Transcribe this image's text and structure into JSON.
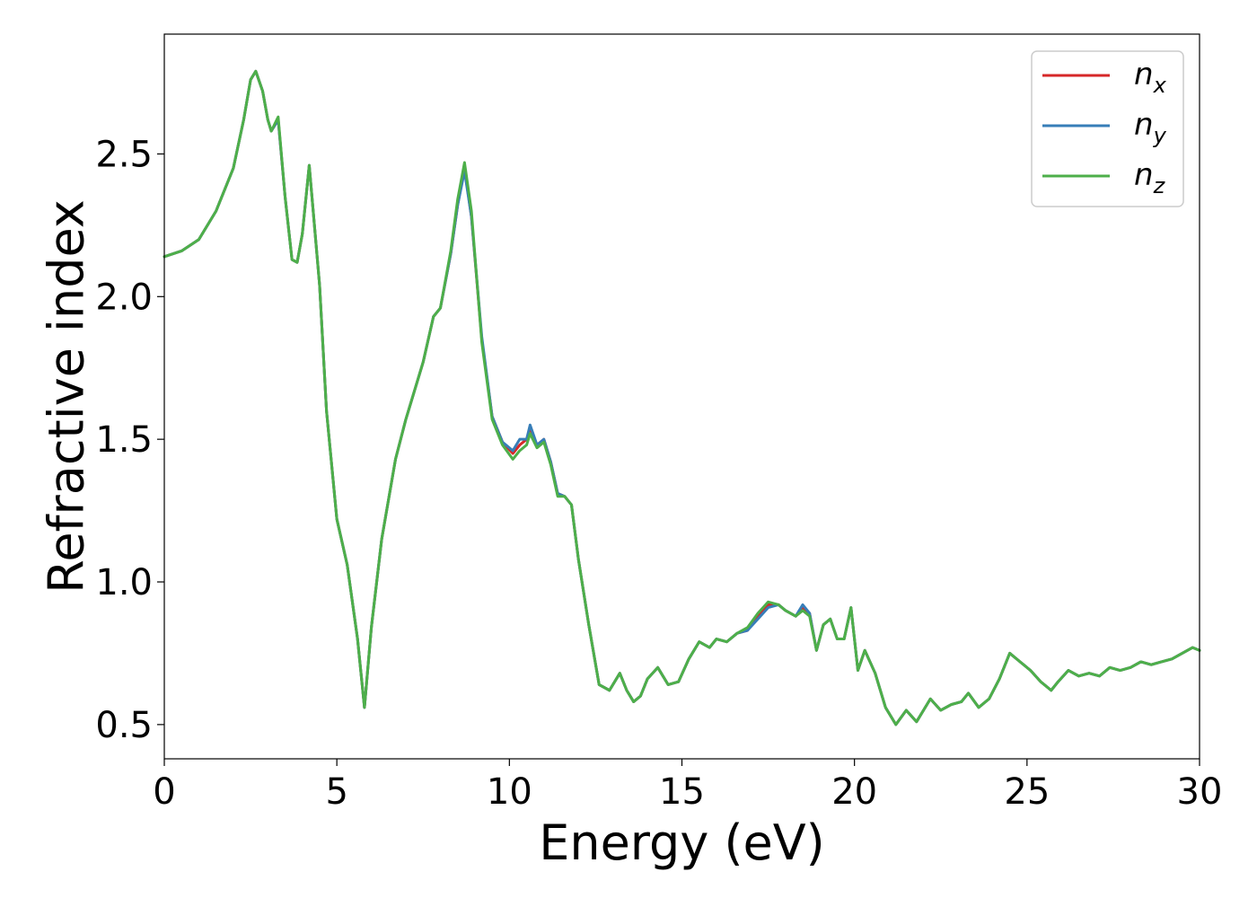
{
  "chart_data": {
    "type": "line",
    "title": "",
    "xlabel": "Energy (eV)",
    "ylabel": "Refractive index",
    "xlim": [
      0,
      30
    ],
    "ylim": [
      0.38,
      2.92
    ],
    "xticks": [
      0,
      5,
      10,
      15,
      20,
      25,
      30
    ],
    "xtick_labels": [
      "0",
      "5",
      "10",
      "15",
      "20",
      "25",
      "30"
    ],
    "yticks": [
      0.5,
      1.0,
      1.5,
      2.0,
      2.5
    ],
    "ytick_labels": [
      "0.5",
      "1.0",
      "1.5",
      "2.0",
      "2.5"
    ],
    "grid": false,
    "legend_position": "top-right",
    "series": [
      {
        "name": "n",
        "subscript": "x",
        "color": "#d62728",
        "x": [
          0,
          0.5,
          1.0,
          1.5,
          2.0,
          2.3,
          2.5,
          2.65,
          2.85,
          3.0,
          3.1,
          3.3,
          3.5,
          3.7,
          3.85,
          4.0,
          4.2,
          4.35,
          4.5,
          4.7,
          5.0,
          5.3,
          5.6,
          5.8,
          6.0,
          6.3,
          6.7,
          7.0,
          7.5,
          7.8,
          8.0,
          8.3,
          8.5,
          8.7,
          8.9,
          9.2,
          9.5,
          9.8,
          10.1,
          10.3,
          10.5,
          10.6,
          10.8,
          11.0,
          11.2,
          11.4,
          11.6,
          11.8,
          12.0,
          12.3,
          12.6,
          12.9,
          13.2,
          13.4,
          13.6,
          13.8,
          14.0,
          14.3,
          14.6,
          14.9,
          15.2,
          15.5,
          15.8,
          16.0,
          16.3,
          16.6,
          16.9,
          17.2,
          17.5,
          17.8,
          18.0,
          18.3,
          18.5,
          18.7,
          18.9,
          19.1,
          19.3,
          19.5,
          19.7,
          19.9,
          20.1,
          20.3,
          20.6,
          20.9,
          21.2,
          21.5,
          21.8,
          22.0,
          22.2,
          22.5,
          22.8,
          23.1,
          23.3,
          23.6,
          23.9,
          24.2,
          24.5,
          24.8,
          25.1,
          25.4,
          25.7,
          25.9,
          26.2,
          26.5,
          26.8,
          27.1,
          27.4,
          27.7,
          28.0,
          28.3,
          28.6,
          28.9,
          29.2,
          29.5,
          29.8,
          30.0
        ],
        "y": [
          2.14,
          2.16,
          2.2,
          2.3,
          2.45,
          2.62,
          2.76,
          2.79,
          2.72,
          2.62,
          2.58,
          2.62,
          2.35,
          2.13,
          2.12,
          2.22,
          2.46,
          2.25,
          2.04,
          1.6,
          1.22,
          1.06,
          0.8,
          0.56,
          0.84,
          1.15,
          1.43,
          1.57,
          1.77,
          1.93,
          1.96,
          2.15,
          2.32,
          2.45,
          2.28,
          1.85,
          1.58,
          1.49,
          1.45,
          1.48,
          1.5,
          1.54,
          1.48,
          1.5,
          1.42,
          1.31,
          1.3,
          1.27,
          1.08,
          0.85,
          0.64,
          0.62,
          0.68,
          0.62,
          0.58,
          0.6,
          0.66,
          0.7,
          0.64,
          0.65,
          0.73,
          0.79,
          0.77,
          0.8,
          0.79,
          0.82,
          0.83,
          0.88,
          0.92,
          0.92,
          0.9,
          0.88,
          0.91,
          0.89,
          0.76,
          0.85,
          0.87,
          0.8,
          0.8,
          0.91,
          0.69,
          0.76,
          0.68,
          0.56,
          0.5,
          0.55,
          0.51,
          0.55,
          0.59,
          0.55,
          0.57,
          0.58,
          0.61,
          0.56,
          0.59,
          0.66,
          0.75,
          0.72,
          0.69,
          0.65,
          0.62,
          0.65,
          0.69,
          0.67,
          0.68,
          0.67,
          0.7,
          0.69,
          0.7,
          0.72,
          0.71,
          0.72,
          0.73,
          0.75,
          0.77,
          0.76
        ]
      },
      {
        "name": "n",
        "subscript": "y",
        "color": "#377eb8",
        "x": [
          0,
          0.5,
          1.0,
          1.5,
          2.0,
          2.3,
          2.5,
          2.65,
          2.85,
          3.0,
          3.1,
          3.3,
          3.5,
          3.7,
          3.85,
          4.0,
          4.2,
          4.35,
          4.5,
          4.7,
          5.0,
          5.3,
          5.6,
          5.8,
          6.0,
          6.3,
          6.7,
          7.0,
          7.5,
          7.8,
          8.0,
          8.3,
          8.5,
          8.7,
          8.9,
          9.2,
          9.5,
          9.8,
          10.1,
          10.3,
          10.5,
          10.6,
          10.8,
          11.0,
          11.2,
          11.4,
          11.6,
          11.8,
          12.0,
          12.3,
          12.6,
          12.9,
          13.2,
          13.4,
          13.6,
          13.8,
          14.0,
          14.3,
          14.6,
          14.9,
          15.2,
          15.5,
          15.8,
          16.0,
          16.3,
          16.6,
          16.9,
          17.2,
          17.5,
          17.8,
          18.0,
          18.3,
          18.5,
          18.7,
          18.9,
          19.1,
          19.3,
          19.5,
          19.7,
          19.9,
          20.1,
          20.3,
          20.6,
          20.9,
          21.2,
          21.5,
          21.8,
          22.0,
          22.2,
          22.5,
          22.8,
          23.1,
          23.3,
          23.6,
          23.9,
          24.2,
          24.5,
          24.8,
          25.1,
          25.4,
          25.7,
          25.9,
          26.2,
          26.5,
          26.8,
          27.1,
          27.4,
          27.7,
          28.0,
          28.3,
          28.6,
          28.9,
          29.2,
          29.5,
          29.8,
          30.0
        ],
        "y": [
          2.14,
          2.16,
          2.2,
          2.3,
          2.45,
          2.62,
          2.76,
          2.79,
          2.72,
          2.62,
          2.58,
          2.62,
          2.35,
          2.13,
          2.12,
          2.22,
          2.46,
          2.25,
          2.04,
          1.6,
          1.22,
          1.06,
          0.8,
          0.56,
          0.84,
          1.15,
          1.43,
          1.57,
          1.77,
          1.93,
          1.96,
          2.15,
          2.32,
          2.44,
          2.28,
          1.86,
          1.58,
          1.49,
          1.46,
          1.5,
          1.5,
          1.55,
          1.48,
          1.5,
          1.42,
          1.31,
          1.3,
          1.27,
          1.08,
          0.85,
          0.64,
          0.62,
          0.68,
          0.62,
          0.58,
          0.6,
          0.66,
          0.7,
          0.64,
          0.65,
          0.73,
          0.79,
          0.77,
          0.8,
          0.79,
          0.82,
          0.83,
          0.87,
          0.91,
          0.92,
          0.9,
          0.88,
          0.92,
          0.89,
          0.76,
          0.85,
          0.87,
          0.8,
          0.8,
          0.91,
          0.69,
          0.76,
          0.68,
          0.56,
          0.5,
          0.55,
          0.51,
          0.55,
          0.59,
          0.55,
          0.57,
          0.58,
          0.61,
          0.56,
          0.59,
          0.66,
          0.75,
          0.72,
          0.69,
          0.65,
          0.62,
          0.65,
          0.69,
          0.67,
          0.68,
          0.67,
          0.7,
          0.69,
          0.7,
          0.72,
          0.71,
          0.72,
          0.73,
          0.75,
          0.77,
          0.76
        ]
      },
      {
        "name": "n",
        "subscript": "z",
        "color": "#4daf4a",
        "x": [
          0,
          0.5,
          1.0,
          1.5,
          2.0,
          2.3,
          2.5,
          2.65,
          2.85,
          3.0,
          3.1,
          3.3,
          3.5,
          3.7,
          3.85,
          4.0,
          4.2,
          4.35,
          4.5,
          4.7,
          5.0,
          5.3,
          5.6,
          5.8,
          6.0,
          6.3,
          6.7,
          7.0,
          7.5,
          7.8,
          8.0,
          8.3,
          8.5,
          8.7,
          8.9,
          9.2,
          9.5,
          9.8,
          10.1,
          10.3,
          10.5,
          10.6,
          10.8,
          11.0,
          11.2,
          11.4,
          11.6,
          11.8,
          12.0,
          12.3,
          12.6,
          12.9,
          13.2,
          13.4,
          13.6,
          13.8,
          14.0,
          14.3,
          14.6,
          14.9,
          15.2,
          15.5,
          15.8,
          16.0,
          16.3,
          16.6,
          16.9,
          17.2,
          17.5,
          17.8,
          18.0,
          18.3,
          18.5,
          18.7,
          18.9,
          19.1,
          19.3,
          19.5,
          19.7,
          19.9,
          20.1,
          20.3,
          20.6,
          20.9,
          21.2,
          21.5,
          21.8,
          22.0,
          22.2,
          22.5,
          22.8,
          23.1,
          23.3,
          23.6,
          23.9,
          24.2,
          24.5,
          24.8,
          25.1,
          25.4,
          25.7,
          25.9,
          26.2,
          26.5,
          26.8,
          27.1,
          27.4,
          27.7,
          28.0,
          28.3,
          28.6,
          28.9,
          29.2,
          29.5,
          29.8,
          30.0
        ],
        "y": [
          2.14,
          2.16,
          2.2,
          2.3,
          2.45,
          2.62,
          2.76,
          2.79,
          2.72,
          2.62,
          2.58,
          2.63,
          2.35,
          2.13,
          2.12,
          2.22,
          2.46,
          2.25,
          2.04,
          1.6,
          1.22,
          1.06,
          0.8,
          0.56,
          0.84,
          1.15,
          1.43,
          1.57,
          1.77,
          1.93,
          1.96,
          2.16,
          2.34,
          2.47,
          2.3,
          1.84,
          1.57,
          1.48,
          1.43,
          1.46,
          1.48,
          1.52,
          1.47,
          1.49,
          1.41,
          1.3,
          1.3,
          1.27,
          1.08,
          0.85,
          0.64,
          0.62,
          0.68,
          0.62,
          0.58,
          0.6,
          0.66,
          0.7,
          0.64,
          0.65,
          0.73,
          0.79,
          0.77,
          0.8,
          0.79,
          0.82,
          0.84,
          0.89,
          0.93,
          0.92,
          0.9,
          0.88,
          0.9,
          0.88,
          0.76,
          0.85,
          0.87,
          0.8,
          0.8,
          0.91,
          0.69,
          0.76,
          0.68,
          0.56,
          0.5,
          0.55,
          0.51,
          0.55,
          0.59,
          0.55,
          0.57,
          0.58,
          0.61,
          0.56,
          0.59,
          0.66,
          0.75,
          0.72,
          0.69,
          0.65,
          0.62,
          0.65,
          0.69,
          0.67,
          0.68,
          0.67,
          0.7,
          0.69,
          0.7,
          0.72,
          0.71,
          0.72,
          0.73,
          0.75,
          0.77,
          0.76
        ]
      }
    ]
  }
}
